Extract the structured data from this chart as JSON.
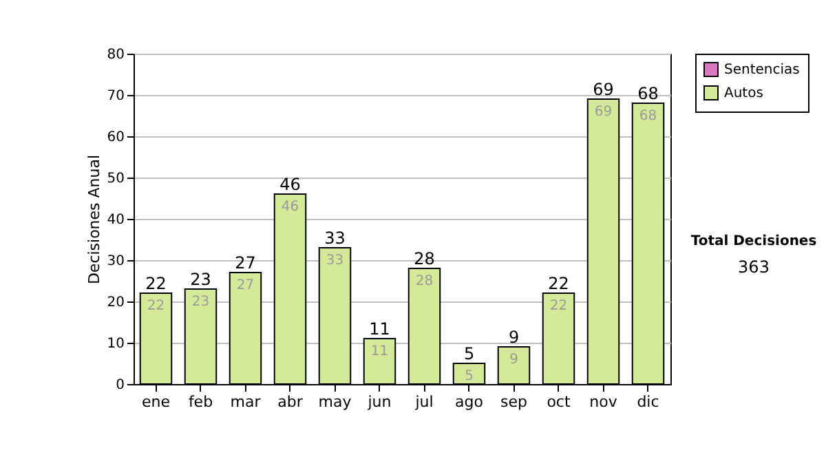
{
  "chart_data": {
    "type": "bar",
    "ylabel": "Decisiones Anual",
    "categories": [
      "ene",
      "feb",
      "mar",
      "abr",
      "may",
      "jun",
      "jul",
      "ago",
      "sep",
      "oct",
      "nov",
      "dic"
    ],
    "series": [
      {
        "name": "Sentencias",
        "color": "#d878c0",
        "values": [
          0,
          0,
          0,
          0,
          0,
          0,
          0,
          0,
          0,
          0,
          0,
          0
        ]
      },
      {
        "name": "Autos",
        "color": "#d4ea98",
        "values": [
          22,
          23,
          27,
          46,
          33,
          11,
          28,
          5,
          9,
          22,
          69,
          68
        ],
        "value_labels": [
          "22",
          "23",
          "27",
          "46",
          "33",
          "11",
          "28",
          "5",
          "9",
          "22",
          "69",
          "68"
        ]
      }
    ],
    "stacked": true,
    "totals": [
      "22",
      "23",
      "27",
      "46",
      "33",
      "11",
      "28",
      "5",
      "9",
      "22",
      "69",
      "68"
    ],
    "ylim": [
      0,
      80
    ],
    "yticks": [
      0,
      10,
      20,
      30,
      40,
      50,
      60,
      70,
      80
    ],
    "grid": "y",
    "legend": "right",
    "annotations": [
      "Total Decisiones",
      "363"
    ]
  }
}
